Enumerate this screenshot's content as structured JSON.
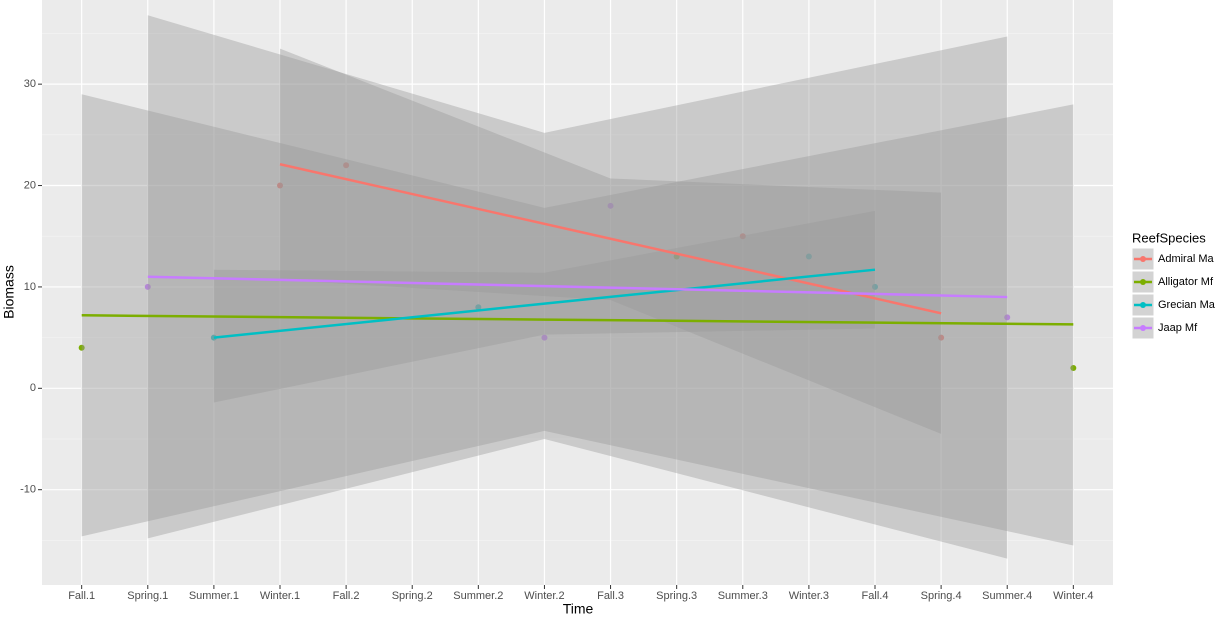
{
  "chart_data": {
    "type": "scatter",
    "x_label": "Time",
    "y_label": "Biomass",
    "legend_title": "ReefSpecies",
    "categories": [
      "Fall.1",
      "Spring.1",
      "Summer.1",
      "Winter.1",
      "Fall.2",
      "Spring.2",
      "Summer.2",
      "Winter.2",
      "Fall.3",
      "Spring.3",
      "Summer.3",
      "Winter.3",
      "Fall.4",
      "Spring.4",
      "Summer.4",
      "Winter.4"
    ],
    "ylim": [
      -19.4,
      38.3
    ],
    "yticks": [
      -10,
      0,
      10,
      20,
      30
    ],
    "grid": true,
    "band_color": "#999999",
    "series": [
      {
        "name": "Admiral Ma",
        "color": "#f8766d",
        "values": [
          null,
          null,
          null,
          20,
          22,
          null,
          null,
          null,
          null,
          null,
          15,
          null,
          null,
          5,
          null,
          null
        ],
        "fit": {
          "x": [
            "Winter.1",
            "Fall.3",
            "Spring.4"
          ],
          "line": [
            22.1,
            14.75,
            7.4
          ],
          "upper": [
            33.5,
            20.7,
            19.3
          ],
          "lower": [
            10.7,
            8.7,
            -4.5
          ]
        }
      },
      {
        "name": "Alligator Mf",
        "color": "#7cae00",
        "values": [
          4,
          null,
          null,
          null,
          null,
          null,
          null,
          null,
          null,
          13,
          null,
          null,
          null,
          null,
          null,
          2
        ],
        "fit": {
          "x": [
            "Fall.1",
            "Winter.2",
            "Winter.4"
          ],
          "line": [
            7.2,
            6.78,
            6.3
          ],
          "upper": [
            29,
            17.8,
            28
          ],
          "lower": [
            -14.6,
            -4.2,
            -15.5
          ]
        }
      },
      {
        "name": "Grecian Ma",
        "color": "#00bfc4",
        "values": [
          null,
          null,
          5,
          null,
          null,
          null,
          8,
          null,
          null,
          null,
          null,
          13,
          10,
          null,
          null,
          null
        ],
        "fit": {
          "x": [
            "Summer.1",
            "Winter.2",
            "Fall.4"
          ],
          "line": [
            5,
            8.35,
            11.7
          ],
          "upper": [
            11.7,
            11.4,
            17.5
          ],
          "lower": [
            -1.4,
            5.3,
            5.9
          ]
        }
      },
      {
        "name": "Jaap Mf",
        "color": "#c77cff",
        "values": [
          null,
          10,
          null,
          null,
          null,
          null,
          null,
          5,
          18,
          null,
          null,
          null,
          null,
          null,
          7,
          null
        ],
        "fit": {
          "x": [
            "Spring.1",
            "Winter.2",
            "Summer.4"
          ],
          "line": [
            11,
            10.08,
            9
          ],
          "upper": [
            36.8,
            25.2,
            34.7
          ],
          "lower": [
            -14.8,
            -5,
            -16.8
          ]
        }
      }
    ]
  }
}
